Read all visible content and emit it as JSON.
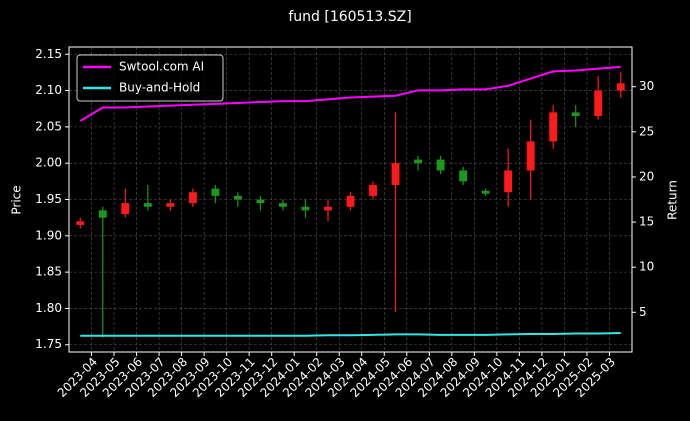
{
  "chart_data": {
    "type": "candlestick",
    "title": "fund [160513.SZ]",
    "ylabel": "Price",
    "y2label": "Return",
    "x": [
      "2023-03",
      "2023-04",
      "2023-05",
      "2023-06",
      "2023-07",
      "2023-08",
      "2023-09",
      "2023-10",
      "2023-11",
      "2023-12",
      "2024-01",
      "2024-02",
      "2024-03",
      "2024-04",
      "2024-05",
      "2024-06",
      "2024-07",
      "2024-08",
      "2024-09",
      "2024-10",
      "2024-11",
      "2024-12",
      "2025-01",
      "2025-02",
      "2025-03"
    ],
    "open": [
      1.915,
      1.935,
      1.93,
      1.945,
      1.94,
      1.945,
      1.965,
      1.955,
      1.95,
      1.945,
      1.94,
      1.935,
      1.94,
      1.955,
      1.97,
      2.005,
      2.005,
      1.99,
      1.962,
      1.96,
      1.99,
      2.03,
      2.07,
      2.065,
      2.1
    ],
    "high": [
      1.925,
      1.94,
      1.965,
      1.97,
      1.95,
      1.965,
      1.97,
      1.96,
      1.955,
      1.95,
      1.95,
      1.95,
      1.96,
      1.975,
      2.07,
      2.01,
      2.01,
      1.995,
      1.965,
      2.02,
      2.06,
      2.08,
      2.08,
      2.12,
      2.125
    ],
    "low": [
      1.91,
      1.76,
      1.925,
      1.935,
      1.935,
      1.94,
      1.945,
      1.94,
      1.935,
      1.935,
      1.925,
      1.92,
      1.935,
      1.95,
      1.795,
      1.99,
      1.985,
      1.97,
      1.955,
      1.94,
      1.95,
      2.02,
      2.05,
      2.06,
      2.09
    ],
    "close": [
      1.92,
      1.925,
      1.945,
      1.94,
      1.945,
      1.96,
      1.955,
      1.95,
      1.945,
      1.94,
      1.935,
      1.94,
      1.955,
      1.97,
      2.0,
      2.0,
      1.99,
      1.975,
      1.958,
      1.99,
      2.03,
      2.07,
      2.065,
      2.1,
      2.11
    ],
    "up_color": "#ff1a1a",
    "down_color": "#1a9a1a",
    "series": [
      {
        "name": "Swtool.com AI",
        "color": "#ff00ff",
        "axis": "y2",
        "values": [
          26.2,
          27.7,
          27.7,
          27.8,
          27.9,
          28.0,
          28.1,
          28.2,
          28.3,
          28.4,
          28.4,
          28.6,
          28.8,
          28.9,
          29.0,
          29.6,
          29.6,
          29.7,
          29.7,
          30.1,
          30.9,
          31.7,
          31.8,
          32.0,
          32.2
        ]
      },
      {
        "name": "Buy-and-Hold",
        "color": "#33e6e6",
        "axis": "y2",
        "values": [
          2.4,
          2.4,
          2.4,
          2.4,
          2.4,
          2.4,
          2.4,
          2.4,
          2.4,
          2.4,
          2.4,
          2.45,
          2.45,
          2.5,
          2.55,
          2.55,
          2.5,
          2.5,
          2.5,
          2.55,
          2.6,
          2.6,
          2.65,
          2.65,
          2.7
        ]
      }
    ],
    "xlim": [
      "2023-03",
      "2025-04"
    ],
    "xticks": [
      "2023-04",
      "2023-05",
      "2023-06",
      "2023-07",
      "2023-08",
      "2023-09",
      "2023-10",
      "2023-11",
      "2023-12",
      "2024-01",
      "2024-02",
      "2024-03",
      "2024-04",
      "2024-05",
      "2024-06",
      "2024-07",
      "2024-08",
      "2024-09",
      "2024-10",
      "2024-11",
      "2024-12",
      "2025-01",
      "2025-02",
      "2025-03"
    ],
    "ylim": [
      1.74,
      2.16
    ],
    "yticks": [
      1.75,
      {
        "value": 1.8,
        "label": "1.80"
      },
      1.85,
      {
        "value": 1.9,
        "label": "1.90"
      },
      1.95,
      {
        "value": 2.0,
        "label": "2.00"
      },
      2.05,
      {
        "value": 2.1,
        "label": "2.10"
      },
      2.15
    ],
    "y2lim": [
      0.6,
      34.4
    ],
    "y2ticks": [
      5,
      10,
      15,
      20,
      25,
      30
    ],
    "grid": true,
    "legend": "upper left"
  }
}
